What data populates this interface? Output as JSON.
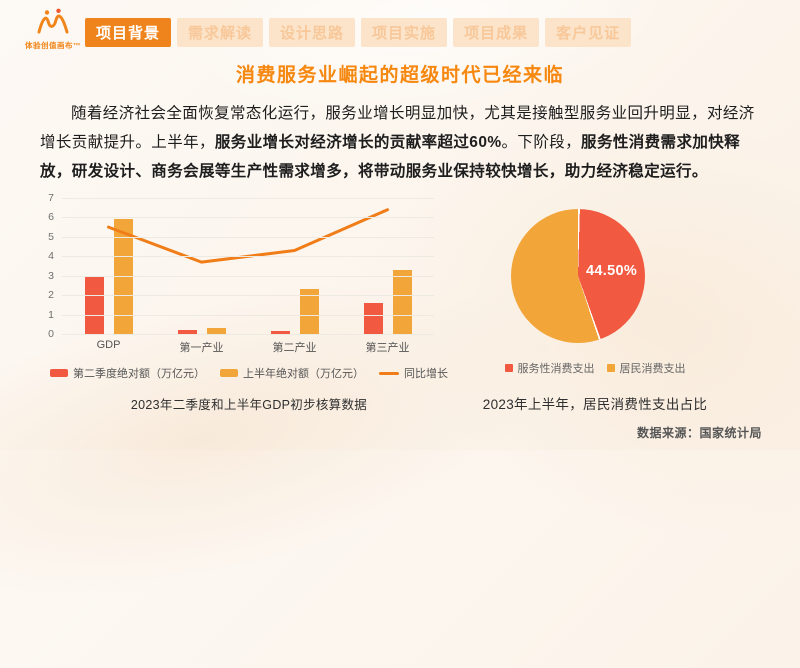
{
  "logo": {
    "text": "体验创值画布™"
  },
  "nav": {
    "tabs": [
      {
        "label": "项目背景",
        "active": true
      },
      {
        "label": "需求解读",
        "active": false
      },
      {
        "label": "设计思路",
        "active": false
      },
      {
        "label": "项目实施",
        "active": false
      },
      {
        "label": "项目成果",
        "active": false
      },
      {
        "label": "客户见证",
        "active": false
      }
    ]
  },
  "title": "消费服务业崛起的超级时代已经来临",
  "paragraph": {
    "runs": [
      {
        "text": "随着经济社会全面恢复常态化运行，服务业增长明显加快，尤其是接触型服务业回升明显，对经济增长贡献提升。上半年，",
        "bold": false
      },
      {
        "text": "服务业增长对经济增长的贡献率超过60%",
        "bold": true
      },
      {
        "text": "。下阶段，",
        "bold": false
      },
      {
        "text": "服务性消费需求加快释放，研发设计、商务会展等生产性需求增多，将带动服务业保持较快增长，助力经济稳定运行。",
        "bold": true
      }
    ]
  },
  "colors": {
    "accent": "#f0841c",
    "red": "#f15a41",
    "orange": "#f2a63a",
    "line_orange": "#f07d17"
  },
  "chart_data": [
    {
      "type": "bar",
      "title": "2023年二季度和上半年GDP初步核算数据",
      "categories": [
        "GDP",
        "第一产业",
        "第二产业",
        "第三产业"
      ],
      "series": [
        {
          "name": "第二季度绝对额（万亿元）",
          "type": "bar",
          "color": "#f15a41",
          "values": [
            3.0,
            0.2,
            0.15,
            1.6
          ]
        },
        {
          "name": "上半年绝对额（万亿元）",
          "type": "bar",
          "color": "#f2a63a",
          "values": [
            5.9,
            0.3,
            2.3,
            3.3
          ]
        },
        {
          "name": "同比增长",
          "type": "line",
          "color": "#f07d17",
          "values": [
            5.5,
            3.7,
            4.3,
            6.4
          ]
        }
      ],
      "xlabel": "",
      "ylabel": "",
      "ylim": [
        0,
        7
      ],
      "ytick_step": 1,
      "grid": true,
      "legend_position": "bottom"
    },
    {
      "type": "pie",
      "title": "2023年上半年，居民消费性支出占比",
      "slices": [
        {
          "label": "服务性消费支出",
          "value": 44.5,
          "display": "44.50%",
          "color": "#f15a41"
        },
        {
          "label": "居民消费支出",
          "value": 55.5,
          "display": "",
          "color": "#f2a63a"
        }
      ],
      "legend_position": "bottom"
    }
  ],
  "source": "数据来源：国家统计局"
}
